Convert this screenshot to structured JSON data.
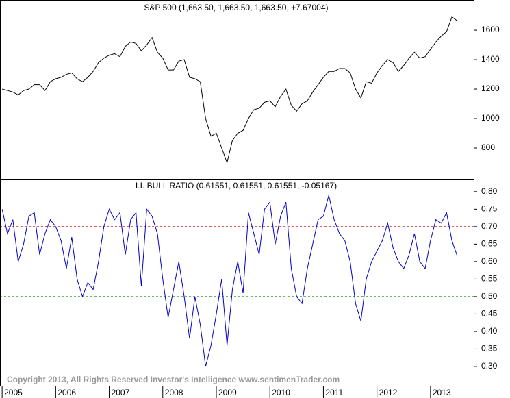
{
  "chart_data": [
    {
      "type": "line",
      "title": "S&P 500 (1,663.50, 1,663.50, 1,663.50, +7.67004)",
      "color": "#000000",
      "xlim": [
        2004.96,
        2013.82
      ],
      "ylim": [
        586,
        1805
      ],
      "yticks": [
        800,
        1000,
        1200,
        1400,
        1600
      ],
      "x": [
        2005.0,
        2005.1,
        2005.2,
        2005.3,
        2005.4,
        2005.5,
        2005.6,
        2005.7,
        2005.8,
        2005.9,
        2006.0,
        2006.1,
        2006.2,
        2006.3,
        2006.4,
        2006.5,
        2006.6,
        2006.7,
        2006.8,
        2006.9,
        2007.0,
        2007.1,
        2007.2,
        2007.3,
        2007.4,
        2007.5,
        2007.6,
        2007.7,
        2007.8,
        2007.9,
        2008.0,
        2008.1,
        2008.2,
        2008.3,
        2008.4,
        2008.5,
        2008.6,
        2008.7,
        2008.8,
        2008.9,
        2009.0,
        2009.1,
        2009.2,
        2009.3,
        2009.4,
        2009.5,
        2009.6,
        2009.7,
        2009.8,
        2009.9,
        2010.0,
        2010.1,
        2010.2,
        2010.3,
        2010.4,
        2010.5,
        2010.6,
        2010.7,
        2010.8,
        2010.9,
        2011.0,
        2011.1,
        2011.2,
        2011.3,
        2011.4,
        2011.5,
        2011.6,
        2011.7,
        2011.8,
        2011.9,
        2012.0,
        2012.1,
        2012.2,
        2012.3,
        2012.4,
        2012.5,
        2012.6,
        2012.7,
        2012.8,
        2012.9,
        2013.0,
        2013.1,
        2013.2,
        2013.3,
        2013.4,
        2013.5
      ],
      "values": [
        1200,
        1190,
        1180,
        1160,
        1190,
        1200,
        1230,
        1230,
        1190,
        1250,
        1270,
        1280,
        1300,
        1310,
        1270,
        1250,
        1280,
        1320,
        1380,
        1410,
        1430,
        1440,
        1420,
        1490,
        1520,
        1510,
        1460,
        1500,
        1550,
        1450,
        1410,
        1330,
        1330,
        1390,
        1400,
        1280,
        1270,
        1250,
        1000,
        880,
        900,
        800,
        700,
        850,
        900,
        920,
        1000,
        1060,
        1070,
        1110,
        1120,
        1080,
        1150,
        1200,
        1090,
        1050,
        1100,
        1120,
        1180,
        1230,
        1280,
        1320,
        1320,
        1340,
        1340,
        1310,
        1200,
        1140,
        1250,
        1240,
        1310,
        1360,
        1400,
        1380,
        1320,
        1360,
        1410,
        1450,
        1410,
        1420,
        1470,
        1520,
        1560,
        1590,
        1690,
        1663.5
      ]
    },
    {
      "type": "line",
      "title": "I.I. BULL RATIO (0.61551, 0.61551, 0.61551, -0.05167)",
      "color": "#0000cc",
      "annotation": "Copyright 2013, All Rights Reserved  Investor's Intelligence  www.sentimenTrader.com",
      "xlim": [
        2004.96,
        2013.82
      ],
      "ylim": [
        0.245,
        0.833
      ],
      "xticks": [
        2005,
        2006,
        2007,
        2008,
        2009,
        2010,
        2011,
        2012,
        2013
      ],
      "yticks": [
        {
          "value": 0.3,
          "label": "0.30"
        },
        0.35,
        {
          "value": 0.4,
          "label": "0.40"
        },
        0.45,
        {
          "value": 0.5,
          "label": "0.50"
        },
        0.55,
        {
          "value": 0.6,
          "label": "0.60"
        },
        0.65,
        {
          "value": 0.7,
          "label": "0.70"
        },
        0.75,
        {
          "value": 0.8,
          "label": "0.80"
        }
      ],
      "hlines": [
        {
          "value": 0.7,
          "color": "#cc0000"
        },
        {
          "value": 0.5,
          "color": "#009900"
        }
      ],
      "x": [
        2005.0,
        2005.1,
        2005.2,
        2005.3,
        2005.4,
        2005.5,
        2005.6,
        2005.7,
        2005.8,
        2005.9,
        2006.0,
        2006.1,
        2006.2,
        2006.3,
        2006.4,
        2006.5,
        2006.6,
        2006.7,
        2006.8,
        2006.9,
        2007.0,
        2007.1,
        2007.2,
        2007.3,
        2007.4,
        2007.5,
        2007.6,
        2007.7,
        2007.8,
        2007.9,
        2008.0,
        2008.1,
        2008.2,
        2008.3,
        2008.4,
        2008.5,
        2008.6,
        2008.7,
        2008.8,
        2008.9,
        2009.0,
        2009.1,
        2009.2,
        2009.3,
        2009.4,
        2009.5,
        2009.6,
        2009.7,
        2009.8,
        2009.9,
        2010.0,
        2010.1,
        2010.2,
        2010.3,
        2010.4,
        2010.5,
        2010.6,
        2010.7,
        2010.8,
        2010.9,
        2011.0,
        2011.1,
        2011.2,
        2011.3,
        2011.4,
        2011.5,
        2011.6,
        2011.7,
        2011.8,
        2011.9,
        2012.0,
        2012.1,
        2012.2,
        2012.3,
        2012.4,
        2012.5,
        2012.6,
        2012.7,
        2012.8,
        2012.9,
        2013.0,
        2013.1,
        2013.2,
        2013.3,
        2013.4,
        2013.5
      ],
      "values": [
        0.75,
        0.68,
        0.72,
        0.6,
        0.65,
        0.73,
        0.74,
        0.62,
        0.68,
        0.72,
        0.7,
        0.66,
        0.58,
        0.67,
        0.55,
        0.5,
        0.54,
        0.52,
        0.6,
        0.7,
        0.75,
        0.72,
        0.74,
        0.62,
        0.72,
        0.74,
        0.53,
        0.75,
        0.73,
        0.68,
        0.55,
        0.44,
        0.52,
        0.6,
        0.5,
        0.38,
        0.5,
        0.42,
        0.3,
        0.36,
        0.45,
        0.55,
        0.36,
        0.52,
        0.6,
        0.51,
        0.74,
        0.68,
        0.62,
        0.75,
        0.77,
        0.65,
        0.73,
        0.77,
        0.58,
        0.5,
        0.48,
        0.58,
        0.65,
        0.72,
        0.73,
        0.79,
        0.72,
        0.68,
        0.66,
        0.6,
        0.48,
        0.43,
        0.55,
        0.6,
        0.63,
        0.66,
        0.71,
        0.64,
        0.6,
        0.58,
        0.62,
        0.68,
        0.6,
        0.58,
        0.66,
        0.72,
        0.71,
        0.74,
        0.66,
        0.61551
      ]
    }
  ]
}
